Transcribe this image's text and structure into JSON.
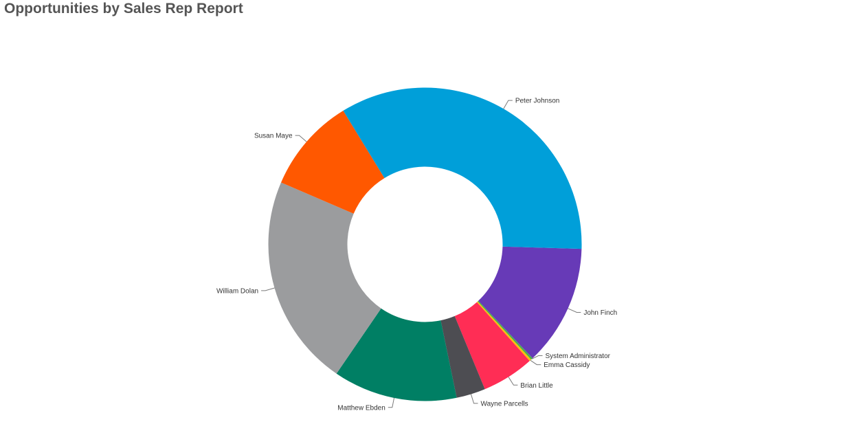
{
  "page": {
    "title": "Opportunities by Sales Rep Report"
  },
  "chart_data": {
    "type": "pie",
    "style": "donut",
    "legend": "none",
    "unit": "percent",
    "slices": [
      {
        "label": "John Finch",
        "value": 12.5,
        "color": "#673ab7"
      },
      {
        "label": "System Administrator",
        "value": 0.2,
        "color": "#4caf50"
      },
      {
        "label": "Emma Cassidy",
        "value": 0.2,
        "color": "#ffc107"
      },
      {
        "label": "Brian Little",
        "value": 5.4,
        "color": "#ff2d55"
      },
      {
        "label": "Wayne Parcells",
        "value": 3.0,
        "color": "#4d4d52"
      },
      {
        "label": "Matthew Ebden",
        "value": 12.8,
        "color": "#007f64"
      },
      {
        "label": "William Dolan",
        "value": 21.9,
        "color": "#9b9c9e"
      },
      {
        "label": "Susan Maye",
        "value": 9.8,
        "color": "#ff5800"
      },
      {
        "label": "Peter Johnson",
        "value": 34.2,
        "color": "#009fd9"
      }
    ]
  }
}
